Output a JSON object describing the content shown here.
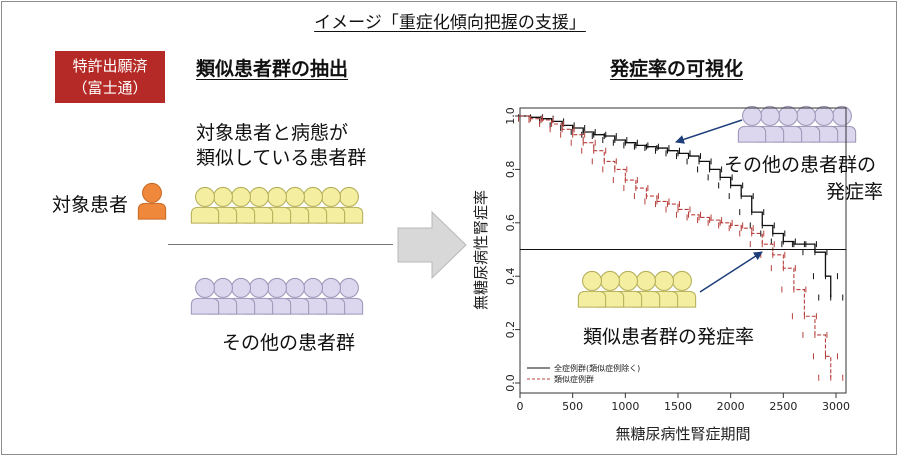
{
  "title": "イメージ「重症化傾向把握の支援」",
  "badge": {
    "line1": "特許出願済",
    "line2": "（富士通）"
  },
  "extraction": {
    "heading": "類似患者群の抽出",
    "similar_label_line1": "対象患者と病態が",
    "similar_label_line2": "類似している患者群",
    "target_patient_label": "対象患者",
    "others_label": "その他の患者群"
  },
  "visualization": {
    "heading": "発症率の可視化",
    "others_rate_line1": "その他の患者群の",
    "others_rate_line2": "発症率",
    "similar_rate": "類似患者群の発症率"
  },
  "colors": {
    "badge": "#b52a26",
    "similar_group": "#f4efa0",
    "other_group": "#dcd7ee",
    "target_patient": "#f0883c",
    "all_cases_line": "#111111",
    "similar_cases_line": "#b8403c",
    "arrow": "#1f3f7a"
  },
  "chart_data": {
    "type": "line",
    "title": "",
    "xlabel": "無糖尿病性腎症期間",
    "ylabel": "無糖尿病性腎症率",
    "xlim": [
      0,
      3000
    ],
    "ylim": [
      0,
      1
    ],
    "x_ticks": [
      "0",
      "500",
      "1000",
      "1500",
      "2000",
      "2500",
      "3000"
    ],
    "y_ticks": [
      "0.0",
      "0.2",
      "0.4",
      "0.6",
      "0.8",
      "1.0"
    ],
    "reference_line_y": 0.5,
    "legend_position": "bottom-left",
    "series": [
      {
        "name": "全症例群(類似症例除く)",
        "style": "solid",
        "x": [
          0,
          100,
          200,
          300,
          400,
          500,
          600,
          700,
          800,
          900,
          1000,
          1100,
          1200,
          1300,
          1400,
          1500,
          1600,
          1700,
          1800,
          1900,
          2000,
          2100,
          2200,
          2300,
          2400,
          2500,
          2600,
          2700,
          2800,
          2900,
          2950
        ],
        "y": [
          1.0,
          0.995,
          0.99,
          0.98,
          0.965,
          0.955,
          0.94,
          0.93,
          0.925,
          0.91,
          0.9,
          0.89,
          0.885,
          0.88,
          0.87,
          0.86,
          0.85,
          0.83,
          0.8,
          0.77,
          0.74,
          0.7,
          0.64,
          0.59,
          0.56,
          0.53,
          0.52,
          0.52,
          0.49,
          0.4,
          0.32
        ]
      },
      {
        "name": "類似症例群",
        "style": "dashed",
        "x": [
          0,
          100,
          200,
          300,
          400,
          500,
          600,
          700,
          800,
          900,
          1000,
          1100,
          1200,
          1300,
          1400,
          1500,
          1600,
          1700,
          1800,
          1900,
          2000,
          2100,
          2200,
          2300,
          2400,
          2500,
          2600,
          2700,
          2800,
          2900,
          2950
        ],
        "y": [
          1.0,
          0.99,
          0.985,
          0.97,
          0.95,
          0.93,
          0.9,
          0.87,
          0.83,
          0.8,
          0.76,
          0.73,
          0.7,
          0.68,
          0.67,
          0.65,
          0.63,
          0.62,
          0.61,
          0.6,
          0.59,
          0.58,
          0.56,
          0.52,
          0.48,
          0.43,
          0.35,
          0.25,
          0.18,
          0.1,
          0.02
        ]
      }
    ]
  }
}
